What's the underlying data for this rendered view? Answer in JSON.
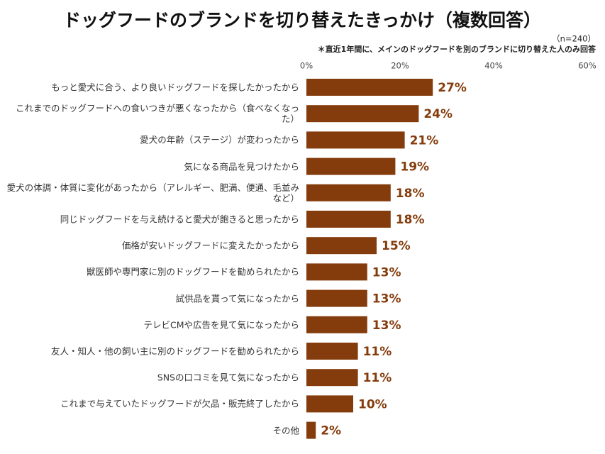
{
  "chart_data": {
    "type": "bar",
    "orientation": "horizontal",
    "title": "ドッグフードのブランドを切り替えたきっかけ（複数回答）",
    "sample_note": "（n=240）",
    "note": "＊直近1年間に、メインのドッグフードを別のブランドに切り替えた人のみ回答",
    "categories": [
      "もっと愛犬に合う、より良いドッグフードを探したかったから",
      "これまでのドッグフードへの食いつきが悪くなったから（食べなくなった）",
      "愛犬の年齢（ステージ）が変わったから",
      "気になる商品を見つけたから",
      "愛犬の体調・体質に変化があったから（アレルギー、肥満、便通、毛並みなど）",
      "同じドッグフードを与え続けると愛犬が飽きると思ったから",
      "価格が安いドッグフードに変えたかったから",
      "獣医師や専門家に別のドッグフードを勧められたから",
      "試供品を貰って気になったから",
      "テレビCMや広告を見て気になったから",
      "友人・知人・他の飼い主に別のドッグフードを勧められたから",
      "SNSの口コミを見て気になったから",
      "これまで与えていたドッグフードが欠品・販売終了したから",
      "その他"
    ],
    "values": [
      27,
      24,
      21,
      19,
      18,
      18,
      15,
      13,
      13,
      13,
      11,
      11,
      10,
      2
    ],
    "value_labels": [
      "27%",
      "24%",
      "21%",
      "19%",
      "18%",
      "18%",
      "15%",
      "13%",
      "13%",
      "13%",
      "11%",
      "11%",
      "10%",
      "2%"
    ],
    "color": "#843c0c",
    "xlim": [
      0,
      60
    ],
    "xticks": [
      {
        "value": 0,
        "label": "0%"
      },
      {
        "value": 20,
        "label": "20%"
      },
      {
        "value": 40,
        "label": "40%"
      },
      {
        "value": 60,
        "label": "60%"
      }
    ]
  }
}
